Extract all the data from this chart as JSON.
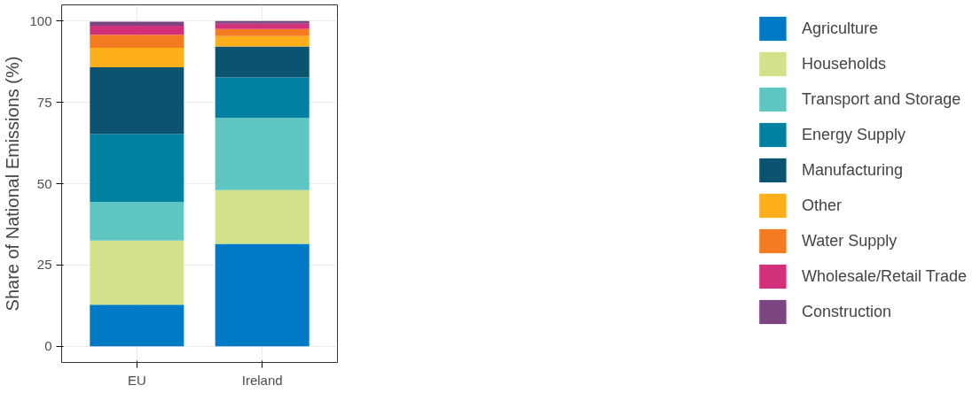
{
  "chart_data": {
    "type": "bar",
    "stacked": true,
    "categories": [
      "EU",
      "Ireland"
    ],
    "ylabel": "Share of National Emissions (%)",
    "ylim": [
      -5,
      105
    ],
    "yticks": [
      0,
      25,
      50,
      75,
      100
    ],
    "grid": true,
    "legend": "right",
    "series": [
      {
        "name": "Agriculture",
        "color": "#007ac4",
        "values": [
          12.8,
          31.5
        ]
      },
      {
        "name": "Households",
        "color": "#d2e28b",
        "values": [
          19.7,
          16.5
        ]
      },
      {
        "name": "Transport and Storage",
        "color": "#5fc6c2",
        "values": [
          11.9,
          22.2
        ]
      },
      {
        "name": "Energy Supply",
        "color": "#0081a1",
        "values": [
          20.9,
          12.5
        ]
      },
      {
        "name": "Manufacturing",
        "color": "#0b536e",
        "values": [
          20.5,
          9.5
        ]
      },
      {
        "name": "Other",
        "color": "#fcae1b",
        "values": [
          6.0,
          3.2
        ]
      },
      {
        "name": "Water Supply",
        "color": "#f47b20",
        "values": [
          4.0,
          2.2
        ]
      },
      {
        "name": "Wholesale/Retail Trade",
        "color": "#d3307c",
        "values": [
          2.8,
          1.6
        ]
      },
      {
        "name": "Construction",
        "color": "#7b4581",
        "values": [
          1.2,
          0.8
        ]
      }
    ]
  }
}
